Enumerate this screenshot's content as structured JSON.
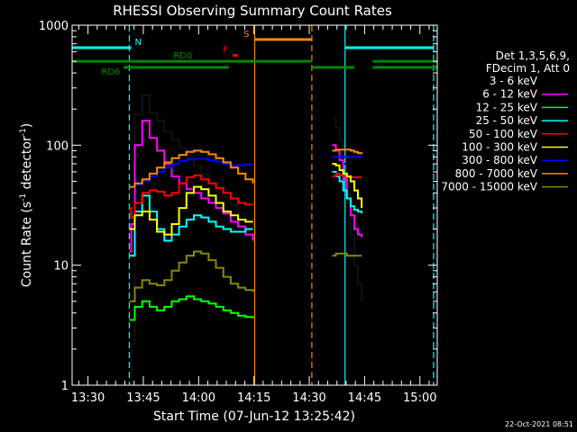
{
  "chart_data": {
    "type": "line",
    "title": "RHESSI Observing Summary Count Rates",
    "xlabel": "Start Time (07-Jun-12 13:25:42)",
    "ylabel": "Count Rate (s⁻¹ detector⁻¹)",
    "ylabel_parts": [
      "Count Rate (s",
      "-1",
      " detector",
      "-1",
      ")"
    ],
    "x_unit": "minutes after 13:25:42",
    "xlim": [
      0,
      99
    ],
    "ylim": [
      1,
      1000
    ],
    "yscale": "log",
    "grid": false,
    "legend_position": "right",
    "x_ticks": [
      {
        "label": "13:30",
        "value": 4.3
      },
      {
        "label": "13:45",
        "value": 19.3
      },
      {
        "label": "14:00",
        "value": 34.3
      },
      {
        "label": "14:15",
        "value": 49.3
      },
      {
        "label": "14:30",
        "value": 64.3
      },
      {
        "label": "14:45",
        "value": 79.3
      },
      {
        "label": "15:00",
        "value": 94.3
      }
    ],
    "y_ticks": [
      {
        "label": "1",
        "value": 1
      },
      {
        "label": "10",
        "value": 10
      },
      {
        "label": "100",
        "value": 100
      },
      {
        "label": "1000",
        "value": 1000
      }
    ],
    "legend_header": [
      "Det 1,3,5,6,9,",
      "FDecim 1, Att 0"
    ],
    "series": [
      {
        "name": "3 - 6 keV",
        "color": "#000000",
        "seg1": [
          [
            15.5,
            1
          ],
          [
            16,
            2.2
          ],
          [
            17,
            180
          ],
          [
            19,
            260
          ],
          [
            21,
            185
          ],
          [
            23,
            160
          ],
          [
            25,
            130
          ],
          [
            27,
            110
          ],
          [
            29,
            95
          ],
          [
            31,
            80
          ],
          [
            33,
            67
          ],
          [
            35,
            57
          ],
          [
            37,
            50
          ],
          [
            39,
            42
          ],
          [
            41,
            37
          ],
          [
            43,
            32
          ],
          [
            45,
            27
          ],
          [
            47,
            24
          ],
          [
            49,
            21
          ]
        ],
        "seg2": [
          [
            70.5,
            170
          ],
          [
            71.5,
            140
          ],
          [
            72.5,
            110
          ],
          [
            73.5,
            70
          ],
          [
            74.5,
            40
          ],
          [
            75.5,
            18
          ],
          [
            76.5,
            10
          ],
          [
            77.5,
            7
          ],
          [
            78.5,
            5
          ]
        ]
      },
      {
        "name": "6 - 12 keV",
        "color": "#ff00ff",
        "seg1": [
          [
            15.5,
            13
          ],
          [
            16,
            22
          ],
          [
            17,
            100
          ],
          [
            19,
            160
          ],
          [
            21,
            115
          ],
          [
            23,
            90
          ],
          [
            25,
            70
          ],
          [
            27,
            55
          ],
          [
            29,
            48
          ],
          [
            31,
            43
          ],
          [
            33,
            40
          ],
          [
            35,
            36
          ],
          [
            37,
            33
          ],
          [
            39,
            30
          ],
          [
            41,
            27
          ],
          [
            43,
            23
          ],
          [
            45,
            21
          ],
          [
            47,
            18
          ],
          [
            49,
            16
          ]
        ],
        "seg2": [
          [
            70.5,
            100
          ],
          [
            71.5,
            90
          ],
          [
            72.5,
            75
          ],
          [
            73.5,
            52
          ],
          [
            74.5,
            36
          ],
          [
            75.5,
            26
          ],
          [
            76.5,
            20
          ],
          [
            77.5,
            18
          ],
          [
            78.5,
            17
          ]
        ]
      },
      {
        "name": "12 - 25 keV",
        "color": "#00ff00",
        "seg1": [
          [
            15.5,
            3.5
          ],
          [
            17,
            4.5
          ],
          [
            19,
            5
          ],
          [
            21,
            4.5
          ],
          [
            23,
            4.2
          ],
          [
            25,
            4.5
          ],
          [
            27,
            5
          ],
          [
            29,
            5.2
          ],
          [
            31,
            5.5
          ],
          [
            33,
            5.2
          ],
          [
            35,
            5
          ],
          [
            37,
            4.8
          ],
          [
            39,
            4.5
          ],
          [
            41,
            4.2
          ],
          [
            43,
            4
          ],
          [
            45,
            3.8
          ],
          [
            47,
            3.7
          ],
          [
            49,
            3.6
          ]
        ],
        "seg2": []
      },
      {
        "name": "25 - 50 keV",
        "color": "#00ffff",
        "seg1": [
          [
            15.5,
            12
          ],
          [
            17,
            28
          ],
          [
            19,
            38
          ],
          [
            21,
            28
          ],
          [
            23,
            20
          ],
          [
            25,
            16
          ],
          [
            27,
            18
          ],
          [
            29,
            21
          ],
          [
            31,
            24
          ],
          [
            33,
            26
          ],
          [
            35,
            25
          ],
          [
            37,
            23
          ],
          [
            39,
            21
          ],
          [
            41,
            20
          ],
          [
            43,
            19
          ],
          [
            45,
            19
          ],
          [
            47,
            20
          ],
          [
            49,
            20
          ]
        ],
        "seg2": [
          [
            70.5,
            60
          ],
          [
            71.5,
            55
          ],
          [
            72.5,
            50
          ],
          [
            73.5,
            42
          ],
          [
            74.5,
            36
          ],
          [
            75.5,
            31
          ],
          [
            76.5,
            29
          ],
          [
            77.5,
            28
          ],
          [
            78.5,
            27
          ]
        ]
      },
      {
        "name": "50 - 100 keV",
        "color": "#ff0000",
        "seg1": [
          [
            15.5,
            30
          ],
          [
            16,
            25
          ],
          [
            17,
            33
          ],
          [
            19,
            40
          ],
          [
            21,
            42
          ],
          [
            23,
            41
          ],
          [
            25,
            38
          ],
          [
            27,
            40
          ],
          [
            29,
            48
          ],
          [
            31,
            54
          ],
          [
            33,
            56
          ],
          [
            35,
            52
          ],
          [
            37,
            48
          ],
          [
            39,
            44
          ],
          [
            41,
            40
          ],
          [
            43,
            36
          ],
          [
            45,
            33
          ],
          [
            47,
            32
          ],
          [
            49,
            32
          ]
        ],
        "seg2": [
          [
            70.5,
            55
          ],
          [
            71.5,
            58
          ],
          [
            72.5,
            56
          ],
          [
            73.5,
            55
          ],
          [
            74.5,
            54
          ],
          [
            75.5,
            54
          ],
          [
            76.5,
            54
          ],
          [
            77.5,
            54
          ],
          [
            78.5,
            54
          ]
        ]
      },
      {
        "name": "100 - 300 keV",
        "color": "#ffff00",
        "seg1": [
          [
            15.5,
            20
          ],
          [
            17,
            26
          ],
          [
            19,
            28
          ],
          [
            21,
            24
          ],
          [
            23,
            19
          ],
          [
            25,
            18
          ],
          [
            27,
            22
          ],
          [
            29,
            30
          ],
          [
            31,
            40
          ],
          [
            33,
            45
          ],
          [
            35,
            43
          ],
          [
            37,
            38
          ],
          [
            39,
            33
          ],
          [
            41,
            28
          ],
          [
            43,
            26
          ],
          [
            45,
            24
          ],
          [
            47,
            23
          ],
          [
            49,
            23
          ]
        ],
        "seg2": [
          [
            70.5,
            70
          ],
          [
            71.5,
            68
          ],
          [
            72.5,
            62
          ],
          [
            73.5,
            58
          ],
          [
            74.5,
            55
          ],
          [
            75.5,
            50
          ],
          [
            76.5,
            42
          ],
          [
            77.5,
            36
          ],
          [
            78.5,
            30
          ]
        ]
      },
      {
        "name": "300 - 800 keV",
        "color": "#0000ff",
        "seg1": [
          [
            15.5,
            45
          ],
          [
            17,
            47
          ],
          [
            19,
            50
          ],
          [
            21,
            55
          ],
          [
            23,
            60
          ],
          [
            25,
            65
          ],
          [
            27,
            70
          ],
          [
            29,
            74
          ],
          [
            31,
            76
          ],
          [
            33,
            77
          ],
          [
            35,
            77
          ],
          [
            37,
            75
          ],
          [
            39,
            73
          ],
          [
            41,
            70
          ],
          [
            43,
            68
          ],
          [
            45,
            68
          ],
          [
            47,
            69
          ],
          [
            49,
            70
          ]
        ],
        "seg2": [
          [
            70.5,
            80
          ],
          [
            71.5,
            80
          ],
          [
            72.5,
            80
          ],
          [
            73.5,
            80
          ],
          [
            74.5,
            80
          ],
          [
            75.5,
            80
          ],
          [
            76.5,
            80
          ],
          [
            77.5,
            80
          ],
          [
            78.5,
            80
          ]
        ]
      },
      {
        "name": "800 - 7000 keV",
        "color": "#ff8800",
        "seg1": [
          [
            15.5,
            45
          ],
          [
            17,
            48
          ],
          [
            19,
            52
          ],
          [
            21,
            58
          ],
          [
            23,
            65
          ],
          [
            25,
            72
          ],
          [
            27,
            78
          ],
          [
            29,
            83
          ],
          [
            31,
            88
          ],
          [
            33,
            90
          ],
          [
            35,
            88
          ],
          [
            37,
            84
          ],
          [
            39,
            78
          ],
          [
            41,
            72
          ],
          [
            43,
            65
          ],
          [
            45,
            58
          ],
          [
            47,
            52
          ],
          [
            49,
            48
          ]
        ],
        "seg2": [
          [
            70.5,
            90
          ],
          [
            71.5,
            92
          ],
          [
            72.5,
            92
          ],
          [
            73.5,
            92
          ],
          [
            74.5,
            92
          ],
          [
            75.5,
            90
          ],
          [
            76.5,
            88
          ],
          [
            77.5,
            86
          ],
          [
            78.5,
            84
          ]
        ]
      },
      {
        "name": "7000 - 15000 keV",
        "color": "#888800",
        "seg1": [
          [
            15.5,
            5
          ],
          [
            17,
            6.5
          ],
          [
            19,
            7.5
          ],
          [
            21,
            7
          ],
          [
            23,
            6.8
          ],
          [
            25,
            7.5
          ],
          [
            27,
            9
          ],
          [
            29,
            10.5
          ],
          [
            31,
            12
          ],
          [
            33,
            13
          ],
          [
            35,
            12.5
          ],
          [
            37,
            11
          ],
          [
            39,
            9.5
          ],
          [
            41,
            8
          ],
          [
            43,
            7
          ],
          [
            45,
            6.5
          ],
          [
            47,
            6.2
          ],
          [
            49,
            6
          ]
        ],
        "seg2": [
          [
            70.5,
            12
          ],
          [
            71.5,
            12.5
          ],
          [
            72.5,
            12.5
          ],
          [
            73.5,
            12.5
          ],
          [
            74.5,
            12
          ],
          [
            75.5,
            12
          ],
          [
            76.5,
            12
          ],
          [
            77.5,
            12
          ],
          [
            78.5,
            12
          ]
        ]
      }
    ],
    "flag_bars": [
      {
        "label": "N",
        "color": "#00ffff",
        "y": 650,
        "segments": [
          [
            0,
            16
          ],
          [
            74,
            98
          ]
        ]
      },
      {
        "label": "S",
        "color": "#ff8800",
        "y": 760,
        "segments": [
          [
            49.5,
            65
          ]
        ]
      },
      {
        "label": "F",
        "color": "#ff0000",
        "y": 560,
        "segments": [
          [
            43.5,
            45
          ]
        ]
      },
      {
        "label": "RD0",
        "color": "#008800",
        "y": 500,
        "segments": [
          [
            0,
            65
          ]
        ]
      },
      {
        "label": "RD6",
        "color": "#008800",
        "y": 445,
        "segments": [
          [
            14,
            42.5
          ],
          [
            65,
            76.5
          ],
          [
            81.5,
            99
          ]
        ]
      },
      {
        "label": "",
        "color": "#008800",
        "y": 500,
        "segments": [
          [
            81.5,
            99
          ]
        ]
      }
    ],
    "vlines": [
      {
        "x": 15.5,
        "color": "#00ffff",
        "style": "dashed"
      },
      {
        "x": 49.5,
        "color": "#ff8800",
        "style": "solid"
      },
      {
        "x": 65,
        "color": "#ff8800",
        "style": "dashed"
      },
      {
        "x": 74,
        "color": "#00ffff",
        "style": "solid"
      },
      {
        "x": 98,
        "color": "#00ffff",
        "style": "dashed"
      }
    ]
  },
  "footer_date": "22-Oct-2021 08:51"
}
